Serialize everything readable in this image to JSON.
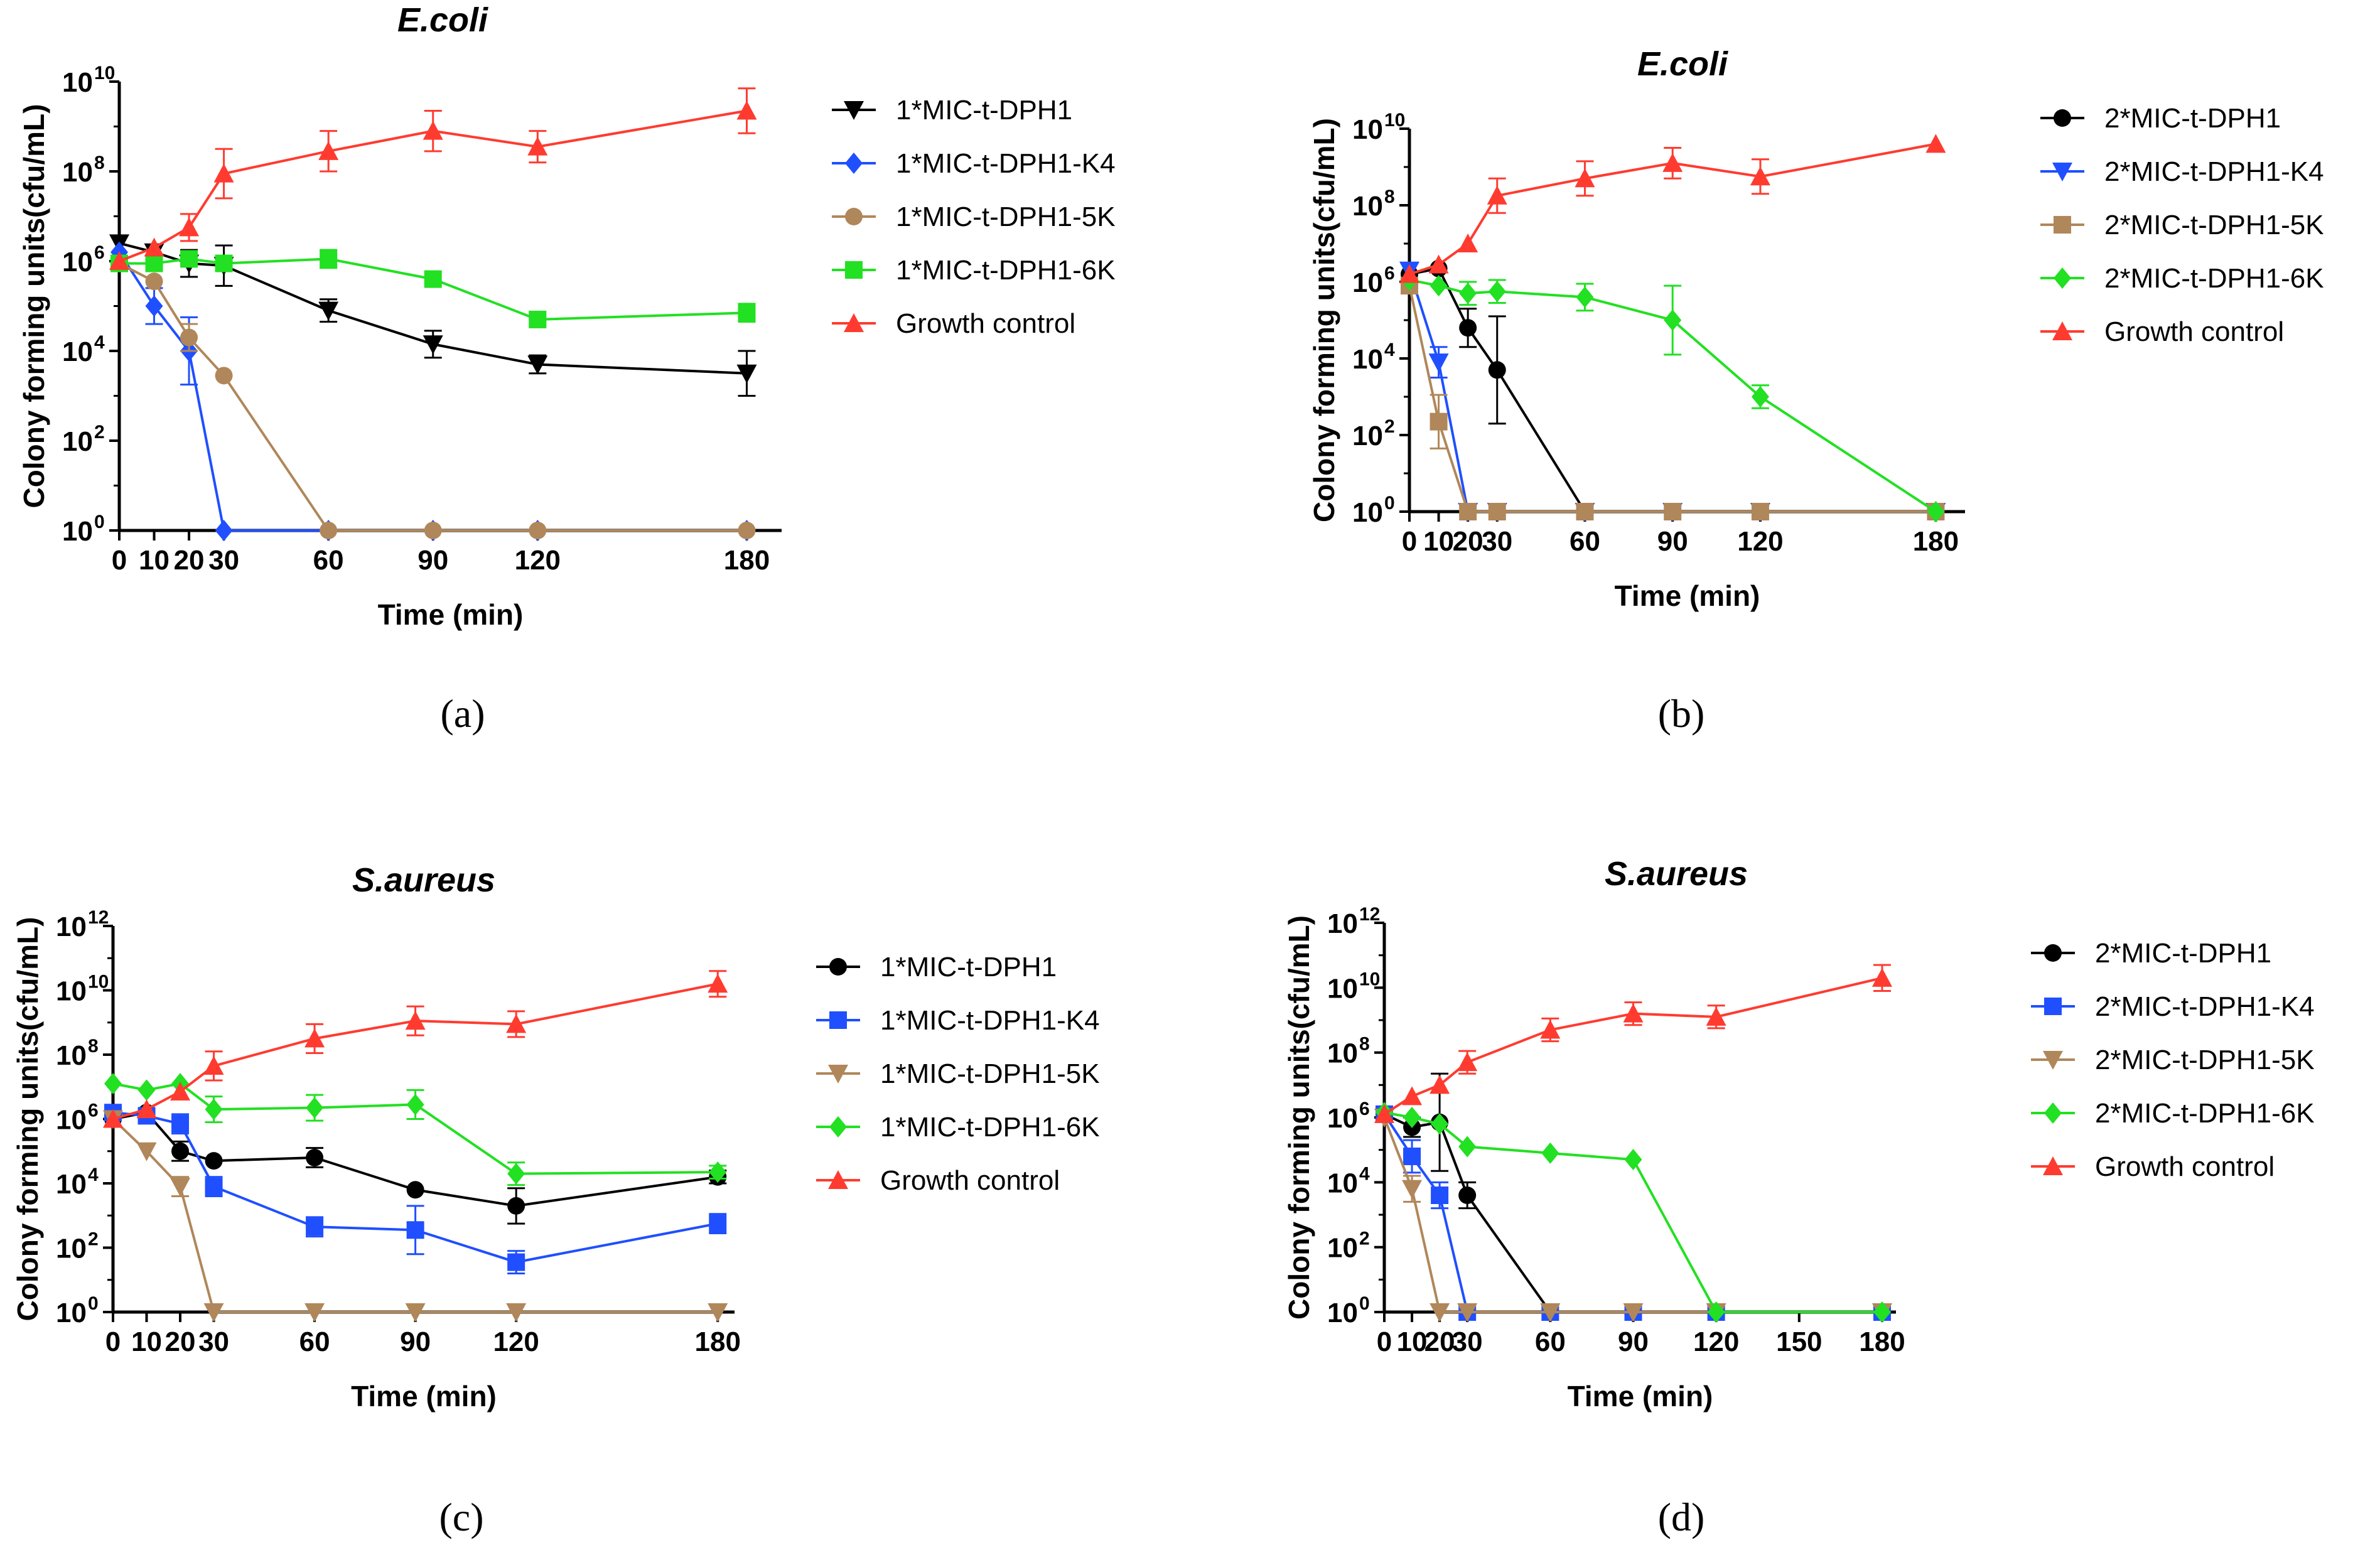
{
  "chart_data": [
    {
      "panel": "(a)",
      "type": "line",
      "title": "E.coli",
      "xlabel": "Time (min)",
      "ylabel": "Colony forming units(cfu/mL)",
      "yscale": "log",
      "xlim": [
        0,
        190
      ],
      "ylim_exp": [
        0,
        10
      ],
      "xticks": [
        {
          "value": 0,
          "label": "0"
        },
        {
          "value": 10,
          "label": "10"
        },
        {
          "value": 20,
          "label": "20"
        },
        {
          "value": 30,
          "label": "30"
        },
        {
          "value": 60,
          "label": "60"
        },
        {
          "value": 90,
          "label": "90"
        },
        {
          "value": 120,
          "label": "120"
        },
        {
          "value": 180,
          "label": "180"
        }
      ],
      "yticks_exp": [
        0,
        2,
        4,
        6,
        8,
        10
      ],
      "legend_position": "right",
      "series": [
        {
          "name": "1*MIC-t-DPH1",
          "color": "#000000",
          "marker": "triangle-down",
          "x": [
            0,
            10,
            20,
            30,
            60,
            90,
            120,
            180
          ],
          "log_y": [
            6.4,
            6.2,
            5.95,
            5.9,
            4.9,
            4.15,
            3.7,
            3.5
          ],
          "err": [
            0,
            0,
            0.3,
            0.45,
            0.25,
            0.3,
            0.2,
            0.5
          ]
        },
        {
          "name": "1*MIC-t-DPH1-K4",
          "color": "#1f4fff",
          "marker": "diamond",
          "x": [
            0,
            10,
            20,
            30,
            60,
            90,
            120,
            180
          ],
          "log_y": [
            6.2,
            5.0,
            4.0,
            0,
            0,
            0,
            0,
            0
          ],
          "err": [
            0,
            0.4,
            0.75,
            0,
            0,
            0,
            0,
            0
          ]
        },
        {
          "name": "1*MIC-t-DPH1-5K",
          "color": "#b0875a",
          "marker": "circle",
          "x": [
            0,
            10,
            20,
            30,
            60,
            90,
            120,
            180
          ],
          "log_y": [
            5.95,
            5.55,
            4.3,
            3.45,
            0,
            0,
            0,
            0
          ],
          "err": [
            0,
            0,
            0.3,
            0,
            0,
            0,
            0,
            0
          ]
        },
        {
          "name": "1*MIC-t-DPH1-6K",
          "color": "#22e022",
          "marker": "square",
          "x": [
            0,
            10,
            20,
            30,
            60,
            90,
            120,
            180
          ],
          "log_y": [
            5.95,
            5.95,
            6.05,
            5.95,
            6.05,
            5.6,
            4.7,
            4.85
          ],
          "err": [
            0,
            0,
            0,
            0,
            0.2,
            0,
            0,
            0.2
          ]
        },
        {
          "name": "Growth control",
          "color": "#ff3b30",
          "marker": "triangle-up",
          "x": [
            0,
            10,
            20,
            30,
            60,
            90,
            120,
            180
          ],
          "log_y": [
            6.0,
            6.3,
            6.75,
            7.95,
            8.45,
            8.9,
            8.55,
            9.35
          ],
          "err": [
            0,
            0,
            0.3,
            0.55,
            0.45,
            0.45,
            0.35,
            0.5
          ]
        }
      ]
    },
    {
      "panel": "(b)",
      "type": "line",
      "title": "E.coli",
      "xlabel": "Time (min)",
      "ylabel": "Colony forming units(cfu/mL)",
      "yscale": "log",
      "xlim": [
        0,
        190
      ],
      "ylim_exp": [
        0,
        10
      ],
      "xticks": [
        {
          "value": 0,
          "label": "0"
        },
        {
          "value": 10,
          "label": "10"
        },
        {
          "value": 20,
          "label": "20"
        },
        {
          "value": 30,
          "label": "30"
        },
        {
          "value": 60,
          "label": "60"
        },
        {
          "value": 90,
          "label": "90"
        },
        {
          "value": 120,
          "label": "120"
        },
        {
          "value": 180,
          "label": "180"
        }
      ],
      "yticks_exp": [
        0,
        2,
        4,
        6,
        8,
        10
      ],
      "legend_position": "right",
      "series": [
        {
          "name": "2*MIC-t-DPH1",
          "color": "#000000",
          "marker": "circle",
          "x": [
            0,
            10,
            20,
            30,
            60,
            90,
            120,
            180
          ],
          "log_y": [
            6.2,
            6.35,
            4.8,
            3.7,
            0,
            0,
            0,
            0
          ],
          "err": [
            0,
            0,
            0.5,
            1.4,
            0,
            0,
            0,
            0
          ]
        },
        {
          "name": "2*MIC-t-DPH1-K4",
          "color": "#1f4fff",
          "marker": "triangle-down",
          "x": [
            0,
            10,
            20,
            30,
            60,
            90,
            120,
            180
          ],
          "log_y": [
            6.3,
            3.9,
            0,
            0,
            0,
            0,
            0,
            0
          ],
          "err": [
            0,
            0.4,
            0,
            0,
            0,
            0,
            0,
            0
          ]
        },
        {
          "name": "2*MIC-t-DPH1-5K",
          "color": "#b0875a",
          "marker": "square",
          "x": [
            0,
            10,
            20,
            30,
            60,
            90,
            120,
            180
          ],
          "log_y": [
            5.9,
            2.35,
            0,
            0,
            0,
            0,
            0,
            0
          ],
          "err": [
            0,
            0.7,
            0,
            0,
            0,
            0,
            0,
            0
          ]
        },
        {
          "name": "2*MIC-t-DPH1-6K",
          "color": "#22e022",
          "marker": "diamond",
          "x": [
            0,
            10,
            20,
            30,
            60,
            90,
            120,
            180
          ],
          "log_y": [
            6.05,
            5.9,
            5.7,
            5.75,
            5.6,
            5.0,
            3.0,
            0
          ],
          "err": [
            0,
            0,
            0.3,
            0.3,
            0.35,
            0.9,
            0.3,
            0
          ]
        },
        {
          "name": "Growth control",
          "color": "#ff3b30",
          "marker": "triangle-up",
          "x": [
            0,
            10,
            20,
            30,
            60,
            90,
            120,
            180
          ],
          "log_y": [
            6.2,
            6.45,
            7.0,
            8.25,
            8.7,
            9.1,
            8.75,
            9.6
          ],
          "err": [
            0,
            0,
            0,
            0.45,
            0.45,
            0.4,
            0.45,
            0
          ]
        }
      ]
    },
    {
      "panel": "(c)",
      "type": "line",
      "title": "S.aureus",
      "xlabel": "Time (min)",
      "ylabel": "Colony forming units(cfu/mL)",
      "yscale": "log",
      "xlim": [
        0,
        185
      ],
      "ylim_exp": [
        0,
        12
      ],
      "xticks": [
        {
          "value": 0,
          "label": "0"
        },
        {
          "value": 10,
          "label": "10"
        },
        {
          "value": 20,
          "label": "20"
        },
        {
          "value": 30,
          "label": "30"
        },
        {
          "value": 60,
          "label": "60"
        },
        {
          "value": 90,
          "label": "90"
        },
        {
          "value": 120,
          "label": "120"
        },
        {
          "value": 180,
          "label": "180"
        }
      ],
      "yticks_exp": [
        0,
        2,
        4,
        6,
        8,
        10,
        12
      ],
      "legend_position": "right",
      "series": [
        {
          "name": "1*MIC-t-DPH1",
          "color": "#000000",
          "marker": "circle",
          "x": [
            0,
            10,
            20,
            30,
            60,
            90,
            120,
            180
          ],
          "log_y": [
            6.0,
            6.2,
            5.0,
            4.7,
            4.8,
            3.8,
            3.3,
            4.2
          ],
          "err": [
            0,
            0,
            0.3,
            0,
            0.3,
            0,
            0.55,
            0.2
          ]
        },
        {
          "name": "1*MIC-t-DPH1-K4",
          "color": "#1f4fff",
          "marker": "square",
          "x": [
            0,
            10,
            20,
            30,
            60,
            90,
            120,
            180
          ],
          "log_y": [
            6.2,
            6.1,
            5.85,
            3.9,
            2.65,
            2.55,
            1.55,
            2.75
          ],
          "err": [
            0,
            0,
            0.3,
            0.3,
            0.3,
            0.75,
            0.35,
            0.3
          ]
        },
        {
          "name": "1*MIC-t-DPH1-5K",
          "color": "#b0875a",
          "marker": "triangle-down",
          "x": [
            0,
            10,
            20,
            30,
            60,
            90,
            120,
            180
          ],
          "log_y": [
            6.0,
            5.0,
            3.9,
            0,
            0,
            0,
            0,
            0
          ],
          "err": [
            0,
            0,
            0.3,
            0,
            0,
            0,
            0,
            0
          ]
        },
        {
          "name": "1*MIC-t-DPH1-6K",
          "color": "#22e022",
          "marker": "diamond",
          "x": [
            0,
            10,
            20,
            30,
            60,
            90,
            120,
            180
          ],
          "log_y": [
            7.1,
            6.9,
            7.1,
            6.3,
            6.35,
            6.45,
            4.3,
            4.35
          ],
          "err": [
            0,
            0,
            0,
            0.4,
            0.4,
            0.45,
            0.35,
            0.2
          ]
        },
        {
          "name": "Growth control",
          "color": "#ff3b30",
          "marker": "triangle-up",
          "x": [
            0,
            10,
            20,
            30,
            60,
            90,
            120,
            180
          ],
          "log_y": [
            6.0,
            6.3,
            6.85,
            7.65,
            8.5,
            9.05,
            8.95,
            10.2
          ],
          "err": [
            0,
            0,
            0,
            0.45,
            0.45,
            0.45,
            0.4,
            0.4
          ]
        }
      ]
    },
    {
      "panel": "(d)",
      "type": "line",
      "title": "S.aureus",
      "xlabel": "Time (min)",
      "ylabel": "Colony forming units(cfu/mL)",
      "yscale": "log",
      "xlim": [
        0,
        185
      ],
      "ylim_exp": [
        0,
        12
      ],
      "xticks": [
        {
          "value": 0,
          "label": "0"
        },
        {
          "value": 10,
          "label": "10"
        },
        {
          "value": 20,
          "label": "20"
        },
        {
          "value": 30,
          "label": "30"
        },
        {
          "value": 60,
          "label": "60"
        },
        {
          "value": 90,
          "label": "90"
        },
        {
          "value": 120,
          "label": "120"
        },
        {
          "value": 150,
          "label": "150"
        },
        {
          "value": 180,
          "label": "180"
        }
      ],
      "yticks_exp": [
        0,
        2,
        4,
        6,
        8,
        10,
        12
      ],
      "legend_position": "right",
      "series": [
        {
          "name": "2*MIC-t-DPH1",
          "color": "#000000",
          "marker": "circle",
          "x": [
            0,
            10,
            20,
            30,
            60,
            90,
            120,
            180
          ],
          "log_y": [
            6.1,
            5.7,
            5.85,
            3.6,
            0,
            0,
            0,
            0
          ],
          "err": [
            0,
            0.3,
            1.5,
            0.4,
            0,
            0,
            0,
            0
          ]
        },
        {
          "name": "2*MIC-t-DPH1-K4",
          "color": "#1f4fff",
          "marker": "square",
          "x": [
            0,
            10,
            20,
            30,
            60,
            90,
            120,
            180
          ],
          "log_y": [
            6.1,
            4.8,
            3.6,
            0,
            0,
            0,
            0,
            0
          ],
          "err": [
            0,
            0.5,
            0.4,
            0,
            0,
            0,
            0,
            0
          ]
        },
        {
          "name": "2*MIC-t-DPH1-5K",
          "color": "#b0875a",
          "marker": "triangle-down",
          "x": [
            0,
            10,
            20,
            30,
            60,
            90,
            120,
            180
          ],
          "log_y": [
            6.0,
            3.8,
            0,
            0,
            0,
            0,
            0,
            0
          ],
          "err": [
            0,
            0.4,
            0,
            0,
            0,
            0,
            0,
            0
          ]
        },
        {
          "name": "2*MIC-t-DPH1-6K",
          "color": "#22e022",
          "marker": "diamond",
          "x": [
            0,
            10,
            20,
            30,
            60,
            90,
            120,
            180
          ],
          "log_y": [
            6.15,
            6.0,
            5.8,
            5.1,
            4.9,
            4.7,
            0,
            0
          ],
          "err": [
            0,
            0,
            0,
            0,
            0,
            0,
            0,
            0
          ]
        },
        {
          "name": "Growth control",
          "color": "#ff3b30",
          "marker": "triangle-up",
          "x": [
            0,
            10,
            20,
            30,
            60,
            90,
            120,
            180
          ],
          "log_y": [
            6.1,
            6.65,
            7.0,
            7.7,
            8.7,
            9.2,
            9.1,
            10.3
          ],
          "err": [
            0,
            0,
            0,
            0.35,
            0.35,
            0.35,
            0.35,
            0.4
          ]
        }
      ]
    }
  ],
  "captions": [
    "(a)",
    "(b)",
    "(c)",
    "(d)"
  ]
}
